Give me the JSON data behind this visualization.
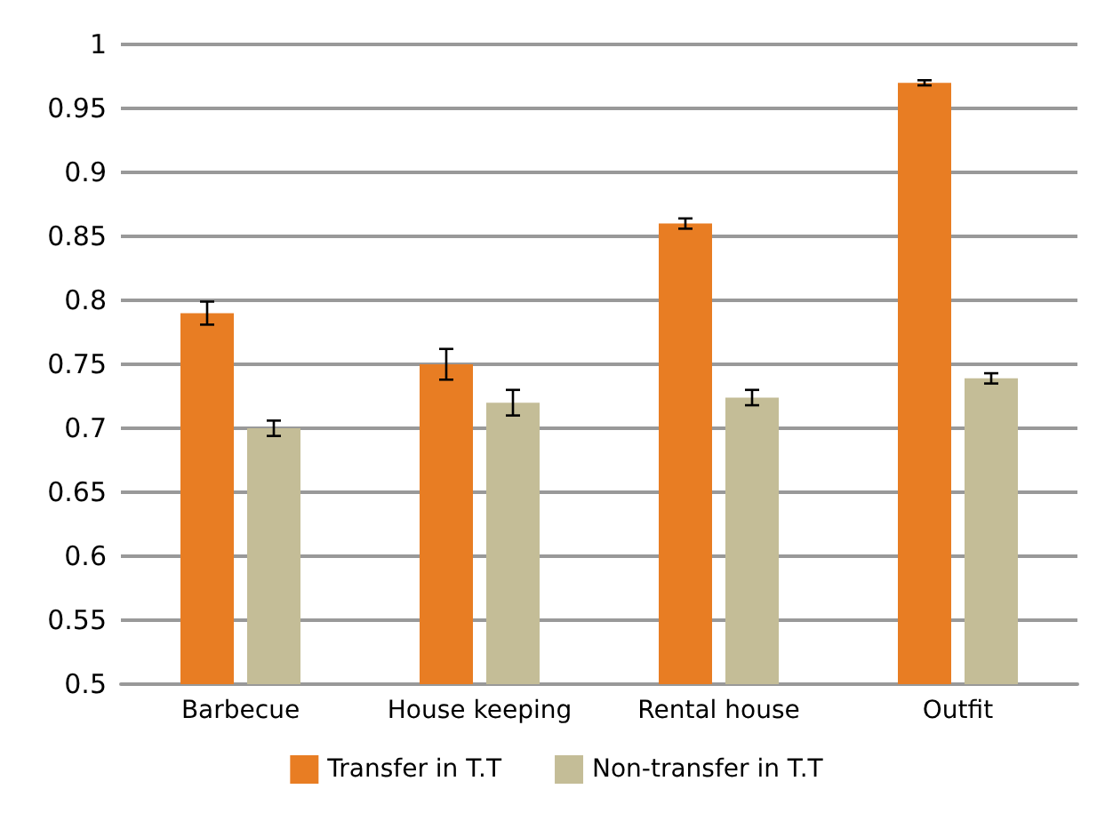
{
  "chart_data": {
    "type": "bar",
    "categories": [
      "Barbecue",
      "House keeping",
      "Rental house",
      "Outfit"
    ],
    "series": [
      {
        "name": "Transfer in T.T",
        "color": "#e87d23",
        "values": [
          0.79,
          0.75,
          0.86,
          0.97
        ],
        "errors": [
          0.009,
          0.012,
          0.004,
          0.002
        ]
      },
      {
        "name": "Non-transfer in T.T",
        "color": "#c4bd97",
        "values": [
          0.7,
          0.72,
          0.724,
          0.739
        ],
        "errors": [
          0.006,
          0.01,
          0.006,
          0.004
        ]
      }
    ],
    "ylim": [
      0.5,
      1
    ],
    "yticks": [
      0.5,
      0.55,
      0.6,
      0.65,
      0.7,
      0.75,
      0.8,
      0.85,
      0.9,
      0.95,
      1
    ],
    "grid": "y",
    "legend": "bottom"
  }
}
